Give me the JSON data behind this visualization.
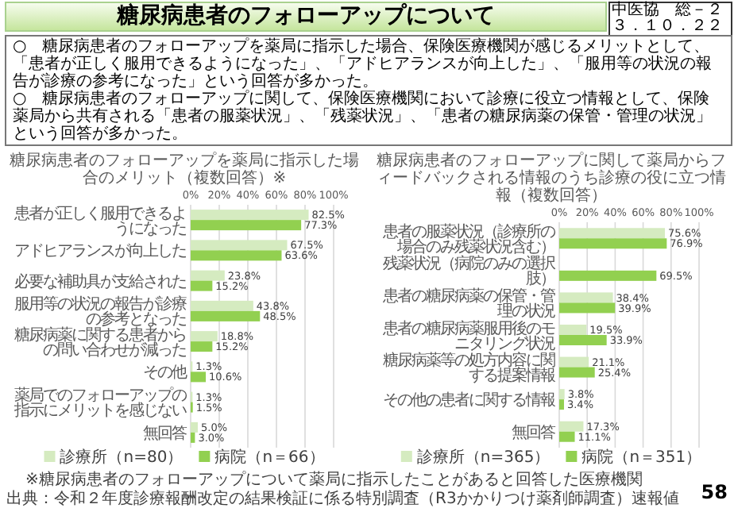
{
  "chart_data": [
    {
      "type": "bar",
      "orientation": "horizontal",
      "title": "糖尿病患者のフォローアップを薬局に指示した場合のメリット（複数回答）※",
      "annotations": [
        "糖尿病患者のフォローアップについて",
        "中医協　総－２",
        "３．１０．２２",
        "○　糖尿病患者のフォローアップを薬局に指示した場合、保険医療機関が感じるメリットとして、「患者が正しく服用できるようになった」、「アドヒアランスが向上した」、「服用等の状況の報告が診療の参考になった」という回答が多かった。",
        "○　糖尿病患者のフォローアップに関して、保険医療機関において診療に役立つ情報として、保険薬局から共有される「患者の服薬状況」、「残薬状況」、「患者の糖尿病薬の保管・管理の状況」という回答が多かった。",
        "※糖尿病患者のフォローアップについて薬局に指示したことがあると回答した医療機関",
        "出典：令和２年度診療報酬改定の結果検証に係る特別調査（R3かかりつけ薬剤師調査）速報値",
        "58"
      ],
      "categories": [
        "患者が正しく服用できるようになった",
        "アドヒアランスが向上した",
        "必要な補助具が支給された",
        "服用等の状況の報告が診療の参考となった",
        "糖尿病薬に関する患者からの問い合わせが減った",
        "その他",
        "薬局でのフォローアップの指示にメリットを感じない",
        "無回答"
      ],
      "series": [
        {
          "name": "診療所（n=80）",
          "color": "#d5ebc0",
          "values": [
            82.5,
            67.5,
            23.8,
            43.8,
            18.8,
            1.3,
            1.3,
            5.0
          ],
          "value_labels": [
            "82.5%",
            "67.5%",
            "23.8%",
            "43.8%",
            "18.8%",
            "1.3%",
            "1.3%",
            "5.0%"
          ]
        },
        {
          "name": "病院（n＝66）",
          "color": "#92d050",
          "values": [
            77.3,
            63.6,
            15.2,
            48.5,
            15.2,
            10.6,
            1.5,
            3.0
          ],
          "value_labels": [
            "77.3%",
            "63.6%",
            "15.2%",
            "48.5%",
            "15.2%",
            "10.6%",
            "1.5%",
            "3.0%"
          ]
        }
      ],
      "xlim": [
        0,
        100
      ],
      "xticks": [
        {
          "value": 0,
          "label": "0%"
        },
        {
          "value": 20,
          "label": "20%"
        },
        {
          "value": 40,
          "label": "40%"
        },
        {
          "value": 60,
          "label": "60%"
        },
        {
          "value": 80,
          "label": "80%"
        },
        {
          "value": 100,
          "label": "100%"
        }
      ],
      "grid": "x",
      "legend": "bottom"
    },
    {
      "type": "bar",
      "orientation": "horizontal",
      "title": "糖尿病患者のフォローアップに関して薬局からフィードバックされる情報のうち診療の役に立つ情報（複数回答）",
      "categories": [
        "患者の服薬状況（診療所の場合のみ残薬状況含む）",
        "残薬状況（病院のみの選択肢）",
        "患者の糖尿病薬の保管・管理の状況",
        "患者の糖尿病薬服用後のモニタリング状況",
        "糖尿病薬等の処方内容に関する提案情報",
        "その他の患者に関する情報",
        "無回答"
      ],
      "series": [
        {
          "name": "診療所（n=365）",
          "color": "#d5ebc0",
          "values": [
            75.6,
            null,
            38.4,
            19.5,
            21.1,
            3.8,
            17.3
          ],
          "value_labels": [
            "75.6%",
            null,
            "38.4%",
            "19.5%",
            "21.1%",
            "3.8%",
            "17.3%"
          ]
        },
        {
          "name": "病院（n＝351）",
          "color": "#92d050",
          "values": [
            76.9,
            69.5,
            39.9,
            33.9,
            25.4,
            3.4,
            11.1
          ],
          "value_labels": [
            "76.9%",
            "69.5%",
            "39.9%",
            "33.9%",
            "25.4%",
            "3.4%",
            "11.1%"
          ]
        }
      ],
      "xlim": [
        0,
        100
      ],
      "xticks": [
        {
          "value": 0,
          "label": "0%"
        },
        {
          "value": 20,
          "label": "20%"
        },
        {
          "value": 40,
          "label": "40%"
        },
        {
          "value": 60,
          "label": "60%"
        },
        {
          "value": 80,
          "label": "80%"
        },
        {
          "value": 100,
          "label": "100%"
        }
      ],
      "grid": "x",
      "legend": "bottom"
    }
  ]
}
